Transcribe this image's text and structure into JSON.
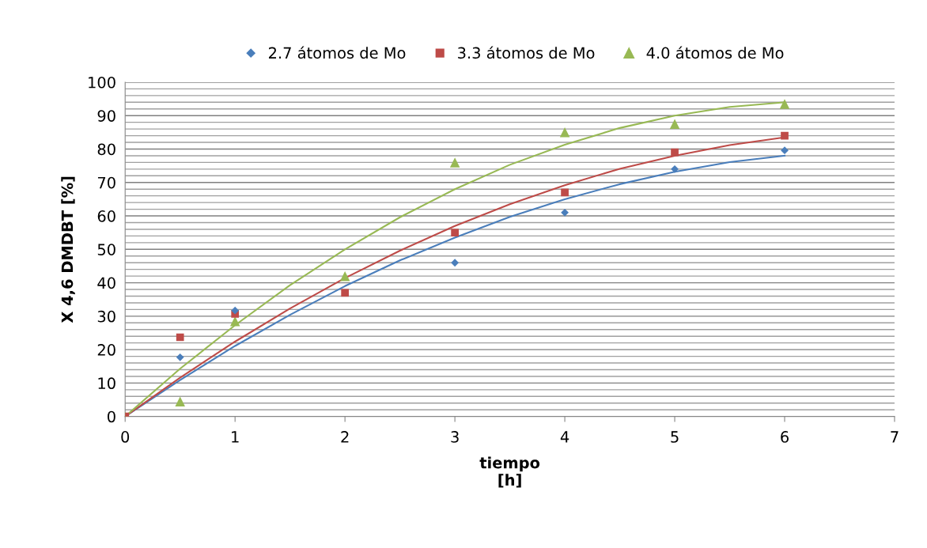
{
  "chart_data": {
    "type": "scatter",
    "xlabel": "tiempo\n[h]",
    "ylabel": "X 4,6 DMDBT [%]",
    "xlim": [
      0,
      7
    ],
    "xticks": [
      0,
      1,
      2,
      3,
      4,
      5,
      6,
      7
    ],
    "ylim": [
      0,
      100
    ],
    "yticks": [
      0,
      {
        "value": 2,
        "label": null
      },
      {
        "value": 4,
        "label": null
      },
      {
        "value": 6,
        "label": null
      },
      {
        "value": 8,
        "label": null
      },
      10,
      {
        "value": 12,
        "label": null
      },
      {
        "value": 14,
        "label": null
      },
      {
        "value": 16,
        "label": null
      },
      {
        "value": 18,
        "label": null
      },
      20,
      {
        "value": 22,
        "label": null
      },
      {
        "value": 24,
        "label": null
      },
      {
        "value": 26,
        "label": null
      },
      {
        "value": 28,
        "label": null
      },
      30,
      {
        "value": 32,
        "label": null
      },
      {
        "value": 34,
        "label": null
      },
      {
        "value": 36,
        "label": null
      },
      {
        "value": 38,
        "label": null
      },
      40,
      {
        "value": 42,
        "label": null
      },
      {
        "value": 44,
        "label": null
      },
      {
        "value": 46,
        "label": null
      },
      {
        "value": 48,
        "label": null
      },
      50,
      {
        "value": 52,
        "label": null
      },
      {
        "value": 54,
        "label": null
      },
      {
        "value": 56,
        "label": null
      },
      {
        "value": 58,
        "label": null
      },
      60,
      {
        "value": 62,
        "label": null
      },
      {
        "value": 64,
        "label": null
      },
      {
        "value": 66,
        "label": null
      },
      {
        "value": 68,
        "label": null
      },
      70,
      {
        "value": 72,
        "label": null
      },
      {
        "value": 74,
        "label": null
      },
      {
        "value": 76,
        "label": null
      },
      {
        "value": 78,
        "label": null
      },
      80,
      {
        "value": 82,
        "label": null
      },
      {
        "value": 84,
        "label": null
      },
      {
        "value": 86,
        "label": null
      },
      {
        "value": 88,
        "label": null
      },
      90,
      {
        "value": 92,
        "label": null
      },
      {
        "value": 94,
        "label": null
      },
      {
        "value": 96,
        "label": null
      },
      {
        "value": 98,
        "label": null
      },
      100
    ],
    "grid": "y",
    "legend": "top",
    "series": [
      {
        "name": "2.7 átomos de Mo",
        "marker": "diamond",
        "color": "#4a7ebb",
        "x": [
          0.5,
          1,
          3,
          4,
          5,
          6
        ],
        "values": [
          17.7,
          31.7,
          46,
          61,
          74,
          79.6
        ]
      },
      {
        "name": "3.3 átomos de Mo",
        "marker": "square",
        "color": "#be4b48",
        "x": [
          0,
          0.5,
          1,
          2,
          3,
          4,
          5,
          6
        ],
        "values": [
          0,
          23.7,
          30.7,
          37,
          55,
          67,
          79,
          84
        ]
      },
      {
        "name": "4.0 átomos de Mo",
        "marker": "triangle",
        "color": "#98b954",
        "x": [
          0,
          0.5,
          1,
          2,
          3,
          4,
          5,
          6
        ],
        "values": [
          0,
          4.5,
          28.5,
          42,
          76,
          85,
          87.5,
          93.5
        ]
      },
      {
        "type": "line",
        "marker": "none",
        "color": "#4a7ebb",
        "x": [
          0,
          0.5,
          1,
          1.5,
          2,
          2.5,
          3,
          3.5,
          4,
          4.5,
          5,
          5.5,
          6
        ],
        "values": [
          0,
          10.9,
          21.1,
          30.4,
          39.0,
          46.7,
          53.5,
          59.7,
          65.0,
          69.5,
          73.2,
          76.1,
          78.0
        ]
      },
      {
        "type": "line",
        "marker": "none",
        "color": "#be4b48",
        "x": [
          0,
          0.5,
          1,
          1.5,
          2,
          2.5,
          3,
          3.5,
          4,
          4.5,
          5,
          5.5,
          6
        ],
        "values": [
          0,
          11.6,
          22.4,
          32.3,
          41.4,
          49.6,
          57.0,
          63.5,
          69.2,
          74.1,
          78.0,
          81.2,
          83.5
        ]
      },
      {
        "type": "line",
        "marker": "none",
        "color": "#98b954",
        "x": [
          0,
          0.5,
          1,
          1.5,
          2,
          2.5,
          3,
          3.5,
          4,
          4.5,
          5,
          5.5,
          6
        ],
        "values": [
          0,
          14.3,
          27.3,
          39.3,
          50.0,
          59.6,
          68.0,
          75.3,
          81.3,
          86.3,
          90.0,
          92.6,
          94.0
        ]
      }
    ]
  }
}
